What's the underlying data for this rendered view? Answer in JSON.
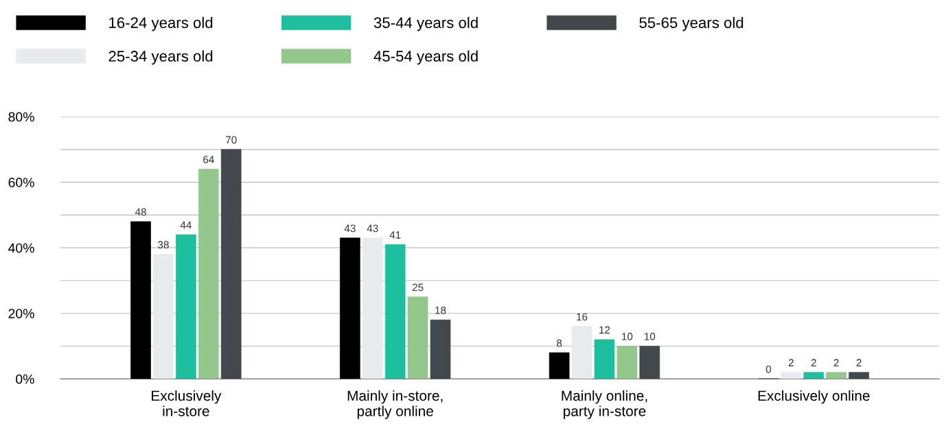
{
  "chart_data": {
    "type": "bar",
    "categories": [
      "Exclusively\nin-store",
      "Mainly in-store,\npartly online",
      "Mainly online,\nparty in-store",
      "Exclusively online"
    ],
    "series": [
      {
        "name": "16-24 years old",
        "color": "#000000",
        "values": [
          48,
          43,
          8,
          0
        ]
      },
      {
        "name": "25-34 years old",
        "color": "#e8ebee",
        "values": [
          38,
          43,
          16,
          2
        ]
      },
      {
        "name": "35-44 years old",
        "color": "#1dbf9f",
        "values": [
          44,
          41,
          12,
          2
        ]
      },
      {
        "name": "45-54 years old",
        "color": "#93c78c",
        "values": [
          64,
          25,
          10,
          2
        ]
      },
      {
        "name": "55-65 years old",
        "color": "#43484c",
        "values": [
          70,
          18,
          10,
          2
        ]
      }
    ],
    "ylim": [
      0,
      80
    ],
    "yticks": [
      {
        "value": 0,
        "label": "0%"
      },
      {
        "value": 10,
        "label": null
      },
      {
        "value": 20,
        "label": "20%"
      },
      {
        "value": 30,
        "label": null
      },
      {
        "value": 40,
        "label": "40%"
      },
      {
        "value": 50,
        "label": null
      },
      {
        "value": 60,
        "label": "60%"
      },
      {
        "value": 70,
        "label": null
      },
      {
        "value": 80,
        "label": "80%"
      }
    ],
    "grid": "y",
    "legend": "top left",
    "data_labels": true
  }
}
